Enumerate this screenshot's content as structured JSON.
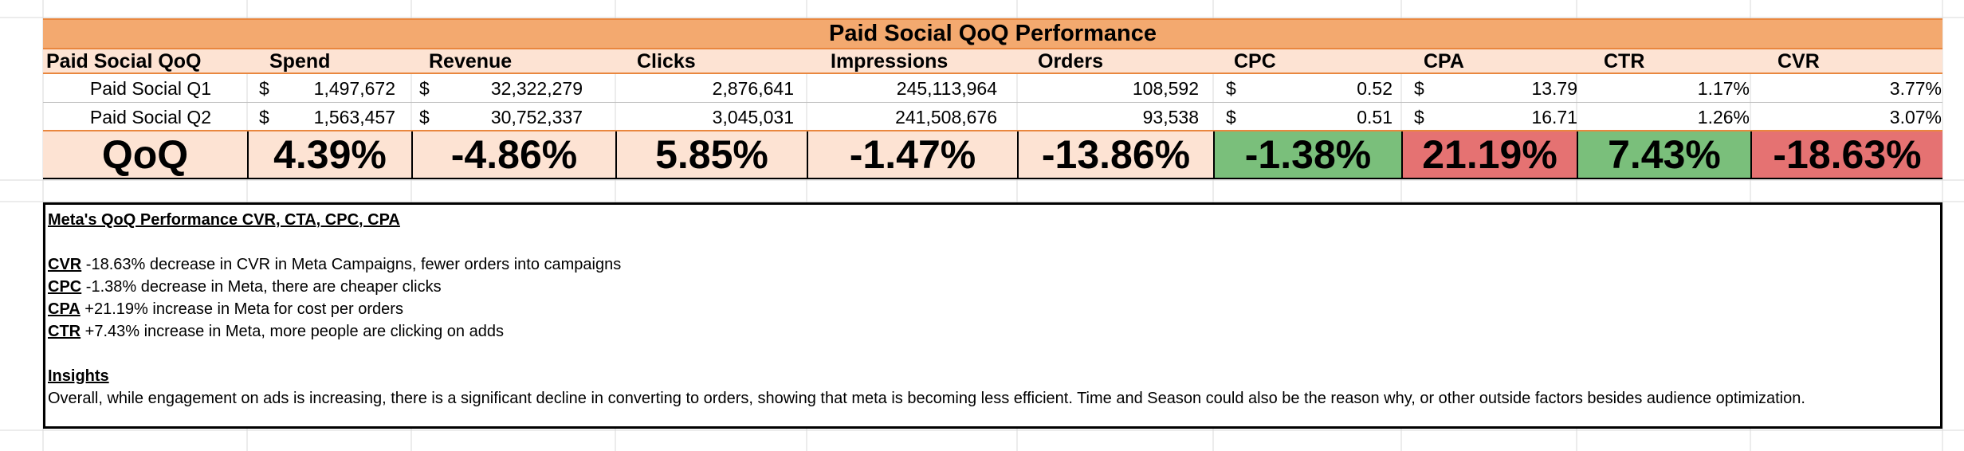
{
  "title": "Paid Social QoQ Performance",
  "columns": [
    "Paid Social QoQ",
    "Spend",
    "Revenue",
    "Clicks",
    "Impressions",
    "Orders",
    "CPC",
    "CPA",
    "CTR",
    "CVR"
  ],
  "rows": [
    {
      "label": "Paid Social Q1",
      "spend": "1,497,672",
      "revenue": "32,322,279",
      "clicks": "2,876,641",
      "impressions": "245,113,964",
      "orders": "108,592",
      "cpc": "0.52",
      "cpa": "13.79",
      "ctr": "1.17%",
      "cvr": "3.77%"
    },
    {
      "label": "Paid Social Q2",
      "spend": "1,563,457",
      "revenue": "30,752,337",
      "clicks": "3,045,031",
      "impressions": "241,508,676",
      "orders": "93,538",
      "cpc": "0.51",
      "cpa": "16.71",
      "ctr": "1.26%",
      "cvr": "3.07%"
    }
  ],
  "currency_symbol": "$",
  "qoq": {
    "label": "QoQ",
    "spend": "4.39%",
    "revenue": "-4.86%",
    "clicks": "5.85%",
    "impressions": "-1.47%",
    "orders": "-13.86%",
    "cpc": "-1.38%",
    "cpa": "21.19%",
    "ctr": "7.43%",
    "cvr": "-18.63%"
  },
  "colors": {
    "title_fill": "#f3a96f",
    "header_fill": "#fde3d3",
    "good_fill": "#7abf7b",
    "bad_fill": "#e57272"
  },
  "notes": {
    "heading": "Meta's QoQ Performance CVR, CTA, CPC, CPA",
    "items": [
      {
        "key": "CVR",
        "text": " -18.63% decrease in CVR in Meta Campaigns, fewer orders into campaigns"
      },
      {
        "key": "CPC",
        "text": " -1.38% decrease in Meta, there are cheaper clicks"
      },
      {
        "key": "CPA",
        "text": " +21.19% increase in Meta for cost per orders"
      },
      {
        "key": "CTR",
        "text": " +7.43% increase in Meta, more people are clicking on adds"
      }
    ],
    "insights_heading": "Insights",
    "insights_text": "Overall, while engagement on ads is increasing, there is a significant decline in converting to orders, showing that meta is becoming less efficient. Time and Season could also be the reason why, or other outside factors besides audience optimization."
  }
}
